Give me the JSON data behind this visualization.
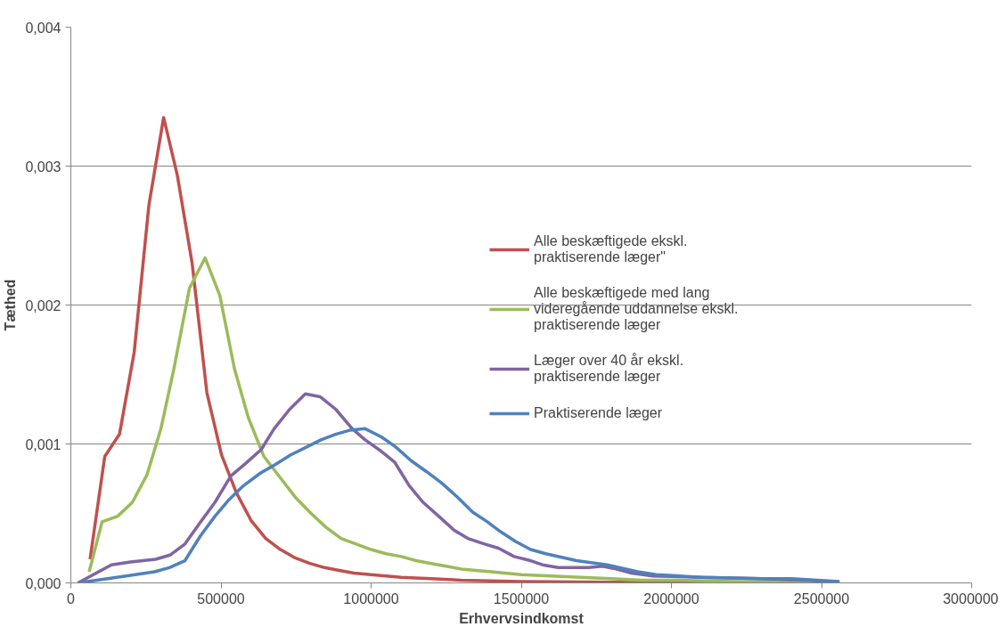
{
  "chart_data": {
    "type": "line",
    "xlabel": "Erhvervsindkomst",
    "ylabel": "Tæthed",
    "xlim": [
      0,
      3000000
    ],
    "xticks": [
      0,
      500000,
      1000000,
      1500000,
      2000000,
      2500000,
      3000000
    ],
    "ylim": [
      0,
      0.004
    ],
    "yticks": [
      {
        "value": 0,
        "label": "0,000"
      },
      {
        "value": 0.001,
        "label": "0,001"
      },
      {
        "value": 0.002,
        "label": "0,002"
      },
      {
        "value": 0.003,
        "label": "0,003"
      },
      {
        "value": 0.004,
        "label": "0,004"
      }
    ],
    "grid": "y",
    "legend": "right",
    "marker": "none",
    "line_style": "solid",
    "series": [
      {
        "name": "Alle beskæftigede ekskl. praktiserende læger\"",
        "color": "#c0504d",
        "x": [
          64000,
          113000,
          162000,
          211000,
          260000,
          309000,
          355000,
          404000,
          453000,
          502000,
          551000,
          600000,
          649000,
          698000,
          747000,
          796000,
          845000,
          894000,
          943000,
          1000000,
          1100000,
          1200000,
          1300000,
          1500000,
          1800000,
          2100000,
          2500000
        ],
        "values": [
          0.00017,
          0.00091,
          0.00107,
          0.00166,
          0.00272,
          0.00335,
          0.00293,
          0.0023,
          0.00137,
          0.00092,
          0.00065,
          0.00045,
          0.00032,
          0.00024,
          0.00018,
          0.00014,
          0.00011,
          9e-05,
          7e-05,
          6e-05,
          4e-05,
          3e-05,
          2e-05,
          1e-05,
          5e-06,
          3e-06,
          0
        ]
      },
      {
        "name": "Alle beskæftigede med lang videregående uddannelse ekskl. praktiserende læger",
        "color": "#9bbb59",
        "x": [
          61000,
          104000,
          156000,
          205000,
          254000,
          300000,
          343000,
          395000,
          447000,
          496000,
          545000,
          591000,
          643000,
          700000,
          750000,
          800000,
          850000,
          900000,
          950000,
          1000000,
          1050000,
          1100000,
          1150000,
          1200000,
          1250000,
          1300000,
          1400000,
          1500000,
          1600000,
          1700000,
          1800000,
          1900000,
          2000000,
          2200000,
          2500000
        ],
        "values": [
          8e-05,
          0.00044,
          0.00048,
          0.00058,
          0.00078,
          0.00111,
          0.00154,
          0.00212,
          0.00234,
          0.00207,
          0.00154,
          0.00119,
          0.00091,
          0.00075,
          0.00061,
          0.0005,
          0.0004,
          0.00032,
          0.00028,
          0.00024,
          0.00021,
          0.00019,
          0.00016,
          0.00014,
          0.00012,
          0.0001,
          8e-05,
          6e-05,
          5e-05,
          4e-05,
          3e-05,
          2e-05,
          2e-05,
          1e-05,
          5e-06
        ]
      },
      {
        "name": "Læger over 40 år ekskl. praktiserende læger",
        "color": "#8064a2",
        "x": [
          24000,
          135000,
          199000,
          282000,
          330000,
          380000,
          429000,
          480000,
          533000,
          582000,
          634000,
          677000,
          729000,
          781000,
          830000,
          882000,
          937000,
          980000,
          1032000,
          1078000,
          1127000,
          1173000,
          1225000,
          1276000,
          1322000,
          1378000,
          1424000,
          1476000,
          1531000,
          1571000,
          1623000,
          1675000,
          1724000,
          1770000,
          1816000,
          1868000,
          1938000,
          2100000,
          2300000,
          2450000,
          2560000
        ],
        "values": [
          0,
          0.00013,
          0.00015,
          0.00017,
          0.0002,
          0.00028,
          0.00043,
          0.00058,
          0.00077,
          0.00086,
          0.00096,
          0.00111,
          0.00125,
          0.00136,
          0.00134,
          0.00125,
          0.00111,
          0.00103,
          0.00095,
          0.00087,
          0.0007,
          0.00058,
          0.00048,
          0.00038,
          0.00032,
          0.00028,
          0.00025,
          0.00019,
          0.00016,
          0.00013,
          0.00011,
          0.00011,
          0.00011,
          0.00012,
          0.0001,
          7e-05,
          5e-05,
          4e-05,
          3e-05,
          2e-05,
          0
        ]
      },
      {
        "name": "Praktiserende læger",
        "color": "#4f81bd",
        "x": [
          24000,
          184000,
          279000,
          328000,
          380000,
          432000,
          480000,
          527000,
          575000,
          631000,
          679000,
          731000,
          787000,
          833000,
          882000,
          931000,
          980000,
          1035000,
          1081000,
          1133000,
          1185000,
          1234000,
          1286000,
          1338000,
          1387000,
          1430000,
          1480000,
          1531000,
          1582000,
          1684000,
          1786000,
          1888000,
          1950000,
          2100000,
          2300000,
          2400000,
          2560000
        ],
        "values": [
          0,
          5e-05,
          8e-05,
          0.00011,
          0.00016,
          0.00034,
          0.00048,
          0.0006,
          0.0007,
          0.00079,
          0.00085,
          0.00092,
          0.00098,
          0.00103,
          0.00107,
          0.0011,
          0.00111,
          0.00105,
          0.00098,
          0.00088,
          0.0008,
          0.00072,
          0.00062,
          0.00051,
          0.00044,
          0.00037,
          0.0003,
          0.00024,
          0.00021,
          0.00016,
          0.00013,
          8e-05,
          6e-05,
          4e-05,
          3e-05,
          3e-05,
          1e-05
        ]
      }
    ]
  }
}
